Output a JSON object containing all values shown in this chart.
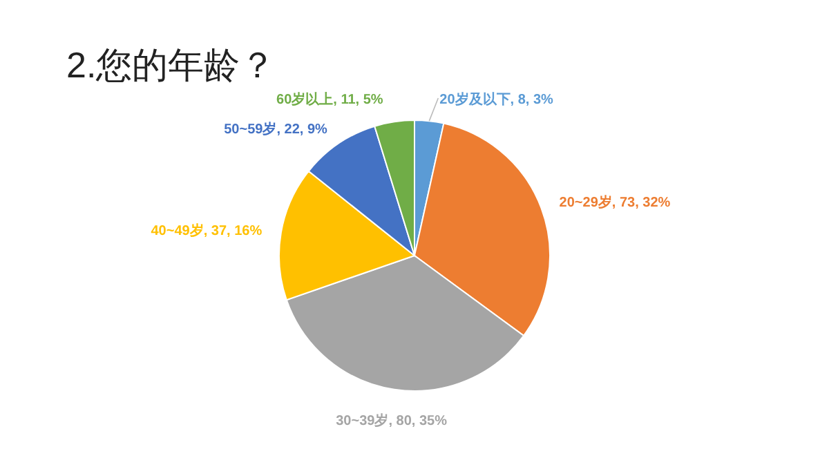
{
  "chart_data": {
    "type": "pie",
    "title": "2.您的年龄？",
    "categories": [
      "20岁及以下",
      "20~29岁",
      "30~39岁",
      "40~49岁",
      "50~59岁",
      "60岁以上"
    ],
    "values": [
      8,
      73,
      80,
      37,
      22,
      11
    ],
    "value_labels": [
      ", 8, 3%",
      ", 73, 32%",
      ", 80, 35%",
      ", 37, 16%",
      ", 22, 9%",
      ", 11, 5%"
    ],
    "colors": [
      "#5b9bd5",
      "#ed7d31",
      "#a5a5a5",
      "#ffc000",
      "#4472c4",
      "#70ad47"
    ],
    "legend": false
  }
}
